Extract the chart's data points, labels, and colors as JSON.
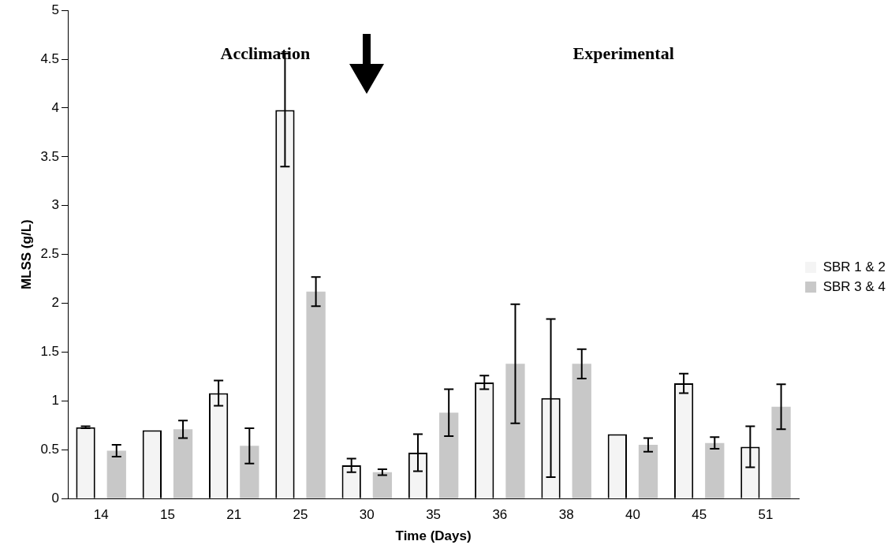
{
  "chart_data": {
    "type": "bar",
    "xlabel": "Time (Days)",
    "ylabel": "MLSS (g/L)",
    "categories": [
      "14",
      "15",
      "21",
      "25",
      "30",
      "35",
      "36",
      "38",
      "40",
      "45",
      "51"
    ],
    "series": [
      {
        "name": "SBR 1 & 2",
        "color": "#f4f4f4",
        "values": [
          0.73,
          0.7,
          1.08,
          3.98,
          0.34,
          0.47,
          1.19,
          1.03,
          0.66,
          1.18,
          0.53
        ],
        "errors": [
          0.01,
          null,
          0.13,
          0.58,
          0.07,
          0.19,
          0.07,
          0.81,
          null,
          0.1,
          0.21
        ]
      },
      {
        "name": "SBR 3 & 4",
        "color": "#c8c8c8",
        "values": [
          0.49,
          0.71,
          0.54,
          2.12,
          0.27,
          0.88,
          1.38,
          1.38,
          0.55,
          0.57,
          0.94
        ],
        "errors": [
          0.06,
          0.09,
          0.18,
          0.15,
          0.03,
          0.24,
          0.61,
          0.15,
          0.07,
          0.06,
          0.23
        ]
      }
    ],
    "ylim": [
      0,
      5
    ],
    "yticks": [
      0,
      0.5,
      1,
      1.5,
      2,
      2.5,
      3,
      3.5,
      4,
      4.5,
      5
    ],
    "grid": false,
    "legend": "right",
    "annotations": [
      "Acclimation",
      "Experimental"
    ]
  }
}
